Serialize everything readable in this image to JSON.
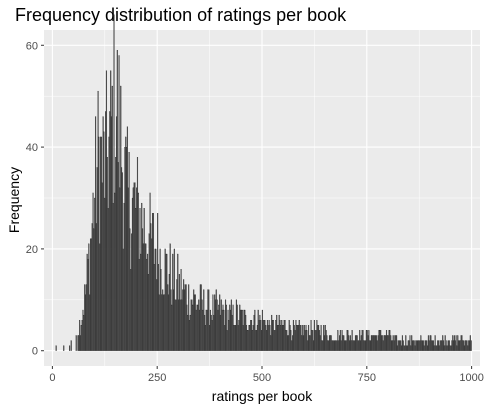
{
  "chart_data": {
    "type": "histogram",
    "title": "Frequency distribution of ratings per book",
    "xlabel": "ratings per book",
    "ylabel": "Frequency",
    "xlim": [
      -20,
      1020
    ],
    "ylim": [
      -3,
      63
    ],
    "x_ticks": [
      0,
      250,
      500,
      750,
      1000
    ],
    "x_tick_labels": [
      "0",
      "250",
      "500",
      "750",
      "1000"
    ],
    "y_ticks": [
      0,
      20,
      40,
      60
    ],
    "y_tick_labels": [
      "0",
      "20",
      "40",
      "60"
    ],
    "grid": true,
    "legend": "none",
    "bin_width": 2,
    "x": [
      0,
      10,
      20,
      30,
      40,
      50,
      60,
      70,
      80,
      90,
      100,
      110,
      120,
      130,
      140,
      150,
      160,
      170,
      180,
      190,
      200,
      210,
      220,
      230,
      240,
      250,
      260,
      270,
      280,
      290,
      300,
      320,
      340,
      360,
      380,
      400,
      420,
      440,
      460,
      480,
      500,
      520,
      540,
      560,
      580,
      600,
      620,
      640,
      660,
      680,
      700,
      720,
      740,
      760,
      780,
      800,
      820,
      840,
      860,
      880,
      900,
      920,
      940,
      960,
      980,
      1000
    ],
    "values": [
      0,
      1,
      0,
      1,
      1,
      2,
      4,
      7,
      12,
      20,
      30,
      38,
      36,
      38,
      42,
      50,
      43,
      35,
      30,
      29,
      28,
      26,
      24,
      22,
      21,
      20,
      18,
      16,
      15,
      14,
      13,
      11,
      10,
      9,
      8,
      8,
      7,
      7,
      6,
      6,
      6,
      5,
      5,
      5,
      4,
      4,
      4,
      4,
      3,
      3,
      3,
      3,
      3,
      3,
      3,
      3,
      2,
      2,
      2,
      2,
      2,
      2,
      2,
      2,
      2,
      2
    ],
    "colors": {
      "panel": "#ebebeb",
      "grid": "#ffffff",
      "bar_fill": "#595959",
      "bar_outline": "#1a1a1a"
    }
  }
}
